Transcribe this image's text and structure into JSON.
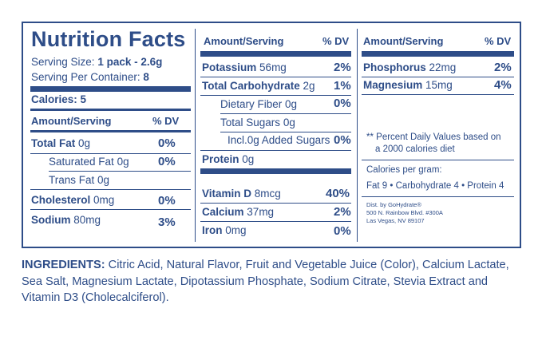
{
  "title": "Nutrition Facts",
  "serving": {
    "size_label": "Serving Size:",
    "size_value": "1 pack - 2.6g",
    "per_container_label": "Serving Per Container:",
    "per_container_value": "8",
    "calories_label": "Calories: 5"
  },
  "headers": {
    "amount": "Amount/Serving",
    "dv": "% DV"
  },
  "col1": [
    {
      "name": "Total Fat",
      "amount": "0g",
      "dv": "0%"
    },
    {
      "name": "Saturated Fat",
      "amount": "0g",
      "dv": "0%"
    },
    {
      "name": "Trans Fat",
      "amount": "0g",
      "dv": ""
    },
    {
      "name": "Cholesterol",
      "amount": "0mg",
      "dv": "0%"
    },
    {
      "name": "Sodium",
      "amount": "80mg",
      "dv": "3%"
    }
  ],
  "col2": [
    {
      "name": "Potassium",
      "amount": "56mg",
      "dv": "2%"
    },
    {
      "name": "Total Carbohydrate",
      "amount": "2g",
      "dv": "1%"
    },
    {
      "name": "Dietary Fiber",
      "amount": "0g",
      "dv": "0%"
    },
    {
      "name": "Total Sugars",
      "amount": "0g",
      "dv": ""
    },
    {
      "name": "Incl.0g Added Sugars",
      "amount": "",
      "dv": "0%"
    },
    {
      "name": "Protein",
      "amount": "0g",
      "dv": ""
    },
    {
      "name": "Vitamin D",
      "amount": "8mcg",
      "dv": "40%"
    },
    {
      "name": "Calcium",
      "amount": "37mg",
      "dv": "2%"
    },
    {
      "name": "Iron",
      "amount": "0mg",
      "dv": "0%"
    }
  ],
  "col3": [
    {
      "name": "Phosphorus",
      "amount": "22mg",
      "dv": "2%"
    },
    {
      "name": "Magnesium",
      "amount": "15mg",
      "dv": "4%"
    }
  ],
  "footnote": {
    "line1": "** Percent Daily Values based on",
    "line2": "a 2000 calories diet",
    "cal_per_gram": "Calories per gram:",
    "cal_values": "Fat 9 • Carbohydrate 4 • Protein 4"
  },
  "distributor": {
    "line1": "Dist. by GoHydrate®",
    "line2": "500 N. Rainbow Blvd. #300A",
    "line3": "Las Vegas, NV 89107"
  },
  "ingredients": {
    "label": "INGREDIENTS:",
    "text": " Citric Acid, Natural Flavor, Fruit and Vegetable Juice (Color), Calcium Lactate, Sea Salt, Magnesium Lactate, Dipotassium Phosphate, Sodium Citrate, Stevia Extract and Vitamin D3 (Cholecalciferol)."
  },
  "colors": {
    "label_blue": "#2e4d88",
    "background": "#ffffff"
  }
}
